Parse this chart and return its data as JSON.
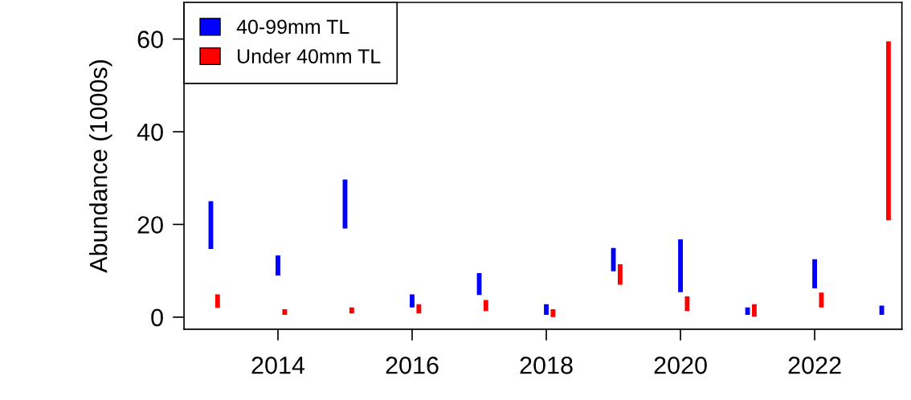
{
  "chart_data": {
    "type": "bar",
    "ylabel": "Abundance (1000s)",
    "series": [
      {
        "name": "40-99mm TL",
        "color": "#0000ff",
        "x": [
          2013,
          2014,
          2015,
          2016,
          2017,
          2018,
          2019,
          2020,
          2021,
          2022,
          2023
        ],
        "base": [
          14.7,
          9.0,
          19.1,
          2.1,
          4.8,
          0.5,
          9.9,
          5.4,
          0.5,
          6.2,
          0.5
        ],
        "values": [
          10.3,
          4.3,
          10.6,
          2.8,
          4.7,
          2.3,
          5.0,
          11.4,
          1.6,
          6.3,
          2.0
        ]
      },
      {
        "name": "Under 40mm TL",
        "color": "#ff0000",
        "x": [
          2013.1,
          2014.1,
          2015.1,
          2016.1,
          2017.1,
          2018.1,
          2019.1,
          2020.1,
          2021.1,
          2022.1,
          2023.1
        ],
        "base": [
          2.0,
          0.5,
          0.8,
          0.8,
          1.3,
          0.0,
          7.0,
          1.3,
          0.1,
          2.1,
          20.9
        ],
        "values": [
          2.9,
          1.2,
          1.3,
          2.0,
          2.4,
          1.7,
          4.4,
          3.2,
          2.7,
          3.2,
          38.6
        ]
      }
    ],
    "xlim": [
      2012.6,
      2023.3
    ],
    "xticks": [
      2014,
      2016,
      2018,
      2020,
      2022
    ],
    "ylim": [
      -2.6,
      67.9
    ],
    "yticks": [
      0,
      20,
      40,
      60
    ],
    "legend": "top left"
  }
}
